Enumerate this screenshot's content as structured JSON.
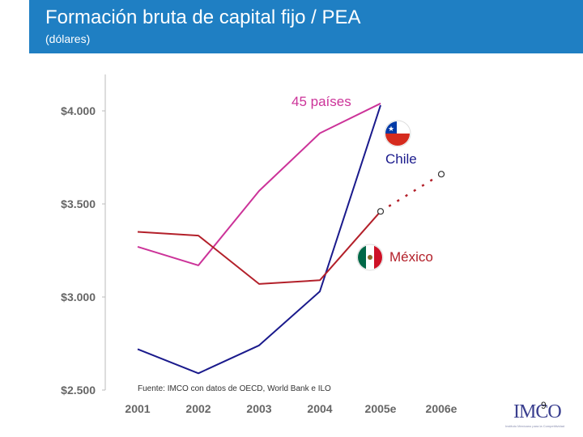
{
  "header": {
    "title": "Formación bruta de capital fijo / PEA",
    "subtitle": "(dólares)",
    "background": "#1f7fc3"
  },
  "chart_data": {
    "type": "line",
    "x": [
      "2001",
      "2002",
      "2003",
      "2004",
      "2005e",
      "2006e"
    ],
    "ylim": [
      2500,
      4200
    ],
    "yticks": [
      2500,
      3000,
      3500,
      4000
    ],
    "ytick_labels": [
      "$2.500",
      "$3.000",
      "$3.500",
      "$4.000"
    ],
    "series": [
      {
        "name": "45 países",
        "color": "#cc3399",
        "values": [
          3270,
          3170,
          3570,
          3880,
          4040,
          null
        ]
      },
      {
        "name": "Chile",
        "color": "#1a1a8c",
        "values": [
          2720,
          2590,
          2740,
          3030,
          4030,
          null
        ]
      },
      {
        "name": "México",
        "color": "#b3202a",
        "values": [
          3350,
          3330,
          3070,
          3090,
          3460,
          null
        ]
      }
    ],
    "projection": {
      "color": "#b3202a",
      "points": [
        {
          "x": "2005e",
          "y": 3460
        },
        {
          "x": "2006e",
          "y": 3660
        }
      ]
    },
    "source_note": "Fuente: IMCO con datos de OECD, World Bank e ILO"
  },
  "footer": {
    "logo_text": "IMCO",
    "logo_tagline": "Instituto Mexicano para la Competitividad",
    "page_number": "9"
  }
}
